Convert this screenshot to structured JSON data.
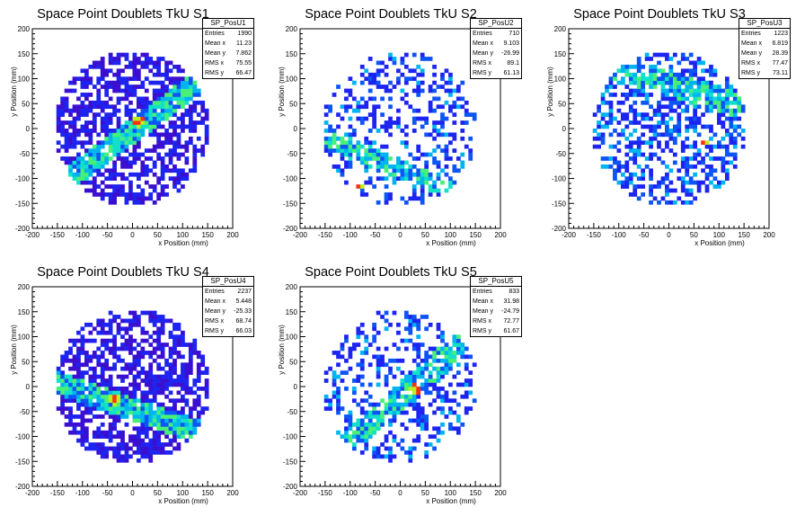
{
  "chart_data": [
    {
      "type": "heatmap",
      "title": "Space Point Doublets TkU S1",
      "xlabel": "x Position (mm)",
      "ylabel": "y Position (mm)",
      "xlim": [
        -200,
        200
      ],
      "ylim": [
        -200,
        200
      ],
      "xticks": [
        "-200",
        "-150",
        "-100",
        "-50",
        "0",
        "50",
        "100",
        "150",
        "200"
      ],
      "yticks": [
        "-200",
        "-150",
        "-100",
        "-50",
        "0",
        "50",
        "100",
        "150",
        "200"
      ],
      "stats": {
        "name": "SP_PosU1",
        "rows": [
          {
            "label": "Entries",
            "value": "1990"
          },
          {
            "label": "Mean x",
            "value": "11.23"
          },
          {
            "label": "Mean y",
            "value": "7.862"
          },
          {
            "label": "RMS x",
            "value": "75.55"
          },
          {
            "label": "RMS y",
            "value": "66.47"
          }
        ]
      },
      "pattern": {
        "radius": 155,
        "fill": 0.78,
        "seed": 11,
        "band_slope": 0.75,
        "band_offset": -5,
        "band_width": 22,
        "hotspot": [
          10,
          15
        ],
        "dense": true
      }
    },
    {
      "type": "heatmap",
      "title": "Space Point Doublets TkU S2",
      "xlabel": "x Position (mm)",
      "ylabel": "y Position (mm)",
      "xlim": [
        -200,
        200
      ],
      "ylim": [
        -200,
        200
      ],
      "xticks": [
        "-200",
        "-150",
        "-100",
        "-50",
        "0",
        "50",
        "100",
        "150",
        "200"
      ],
      "yticks": [
        "-200",
        "-150",
        "-100",
        "-50",
        "0",
        "50",
        "100",
        "150",
        "200"
      ],
      "stats": {
        "name": "SP_PosU2",
        "rows": [
          {
            "label": "Entries",
            "value": "710"
          },
          {
            "label": "Mean x",
            "value": "9.103"
          },
          {
            "label": "Mean y",
            "value": "-26.99"
          },
          {
            "label": "RMS x",
            "value": "89.1"
          },
          {
            "label": "RMS y",
            "value": "61.13"
          }
        ]
      },
      "pattern": {
        "radius": 155,
        "fill": 0.42,
        "seed": 22,
        "band_slope": -0.4,
        "band_offset": -80,
        "band_width": 20,
        "hotspot": [
          -80,
          -110
        ],
        "dense": false
      }
    },
    {
      "type": "heatmap",
      "title": "Space Point Doublets TkU S3",
      "xlabel": "x Position (mm)",
      "ylabel": "y Position (mm)",
      "xlim": [
        -200,
        200
      ],
      "ylim": [
        -200,
        200
      ],
      "xticks": [
        "-200",
        "-150",
        "-100",
        "-50",
        "0",
        "50",
        "100",
        "150",
        "200"
      ],
      "yticks": [
        "-200",
        "-150",
        "-100",
        "-50",
        "0",
        "50",
        "100",
        "150",
        "200"
      ],
      "stats": {
        "name": "SP_PosU3",
        "rows": [
          {
            "label": "Entries",
            "value": "1223"
          },
          {
            "label": "Mean x",
            "value": "6.819"
          },
          {
            "label": "Mean y",
            "value": "28.39"
          },
          {
            "label": "RMS x",
            "value": "77.47"
          },
          {
            "label": "RMS y",
            "value": "73.11"
          }
        ]
      },
      "pattern": {
        "radius": 155,
        "fill": 0.6,
        "seed": 33,
        "band_slope": -0.3,
        "band_offset": 90,
        "band_width": 24,
        "hotspot": [
          70,
          -25
        ],
        "dense": false
      }
    },
    {
      "type": "heatmap",
      "title": "Space Point Doublets TkU S4",
      "xlabel": "x Position (mm)",
      "ylabel": "y Position (mm)",
      "xlim": [
        -200,
        200
      ],
      "ylim": [
        -200,
        200
      ],
      "xticks": [
        "-200",
        "-150",
        "-100",
        "-50",
        "0",
        "50",
        "100",
        "150",
        "200"
      ],
      "yticks": [
        "-200",
        "-150",
        "-100",
        "-50",
        "0",
        "50",
        "100",
        "150",
        "200"
      ],
      "stats": {
        "name": "SP_PosU4",
        "rows": [
          {
            "label": "Entries",
            "value": "2237"
          },
          {
            "label": "Mean x",
            "value": "5.448"
          },
          {
            "label": "Mean y",
            "value": "-25.33"
          },
          {
            "label": "RMS x",
            "value": "68.74"
          },
          {
            "label": "RMS y",
            "value": "66.03"
          }
        ]
      },
      "pattern": {
        "radius": 155,
        "fill": 0.8,
        "seed": 44,
        "band_slope": -0.35,
        "band_offset": -45,
        "band_width": 22,
        "hotspot": [
          -35,
          -25
        ],
        "dense": true
      }
    },
    {
      "type": "heatmap",
      "title": "Space Point Doublets TkU S5",
      "xlabel": "x Position (mm)",
      "ylabel": "y Position (mm)",
      "xlim": [
        -200,
        200
      ],
      "ylim": [
        -200,
        200
      ],
      "xticks": [
        "-200",
        "-150",
        "-100",
        "-50",
        "0",
        "50",
        "100",
        "150",
        "200"
      ],
      "yticks": [
        "-200",
        "-150",
        "-100",
        "-50",
        "0",
        "50",
        "100",
        "150",
        "200"
      ],
      "stats": {
        "name": "SP_PosU5",
        "rows": [
          {
            "label": "Entries",
            "value": "833"
          },
          {
            "label": "Mean x",
            "value": "31.98"
          },
          {
            "label": "Mean y",
            "value": "-24.79"
          },
          {
            "label": "RMS x",
            "value": "72.77"
          },
          {
            "label": "RMS y",
            "value": "61.67"
          }
        ]
      },
      "pattern": {
        "radius": 155,
        "fill": 0.45,
        "seed": 55,
        "band_slope": 0.9,
        "band_offset": -20,
        "band_width": 22,
        "hotspot": [
          30,
          -5
        ],
        "dense": false
      }
    }
  ],
  "palette": [
    "#3b0fd0",
    "#1d24f0",
    "#0d55f5",
    "#00b4f0",
    "#12e0c8",
    "#48f078",
    "#b8f020",
    "#ff3010"
  ]
}
